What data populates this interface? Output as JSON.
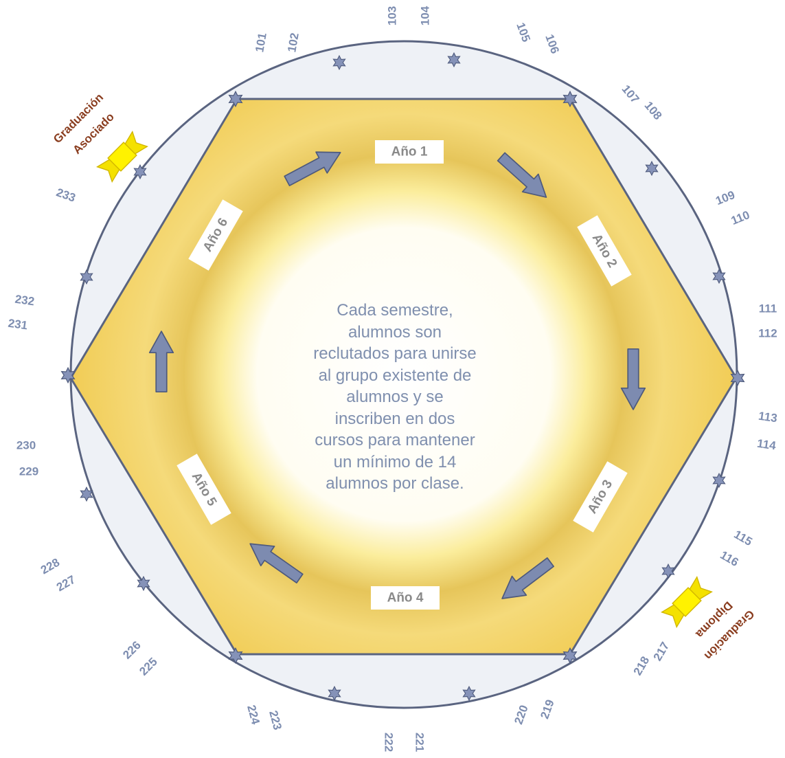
{
  "center": {
    "lines": [
      "Cada semestre,",
      "alumnos son",
      "reclutados para unirse",
      "al grupo existente de",
      "alumnos y se",
      "inscriben en dos",
      "cursos para mantener",
      "un mínimo de 14",
      "alumnos por clase."
    ]
  },
  "years": [
    "Año 1",
    "Año 2",
    "Año 3",
    "Año 4",
    "Año 5",
    "Año 6"
  ],
  "courses": [
    "101",
    "102",
    "103",
    "104",
    "105",
    "106",
    "107",
    "108",
    "109",
    "110",
    "111",
    "112",
    "113",
    "114",
    "115",
    "116",
    "217",
    "218",
    "219",
    "220",
    "221",
    "222",
    "223",
    "224",
    "225",
    "226",
    "227",
    "228",
    "229",
    "230",
    "231",
    "232",
    "233"
  ],
  "graduations": {
    "associate": [
      "Graduación",
      "Asociado"
    ],
    "diploma": [
      "Graduación",
      "Diploma"
    ]
  },
  "colors": {
    "ring": "#5a6480",
    "hex_fill": "#f2d46a",
    "arrow": "#7d8bb0",
    "course_number": "#7d8db0",
    "graduation_text": "#8a3d1f",
    "ribbon": "#f4e100"
  }
}
